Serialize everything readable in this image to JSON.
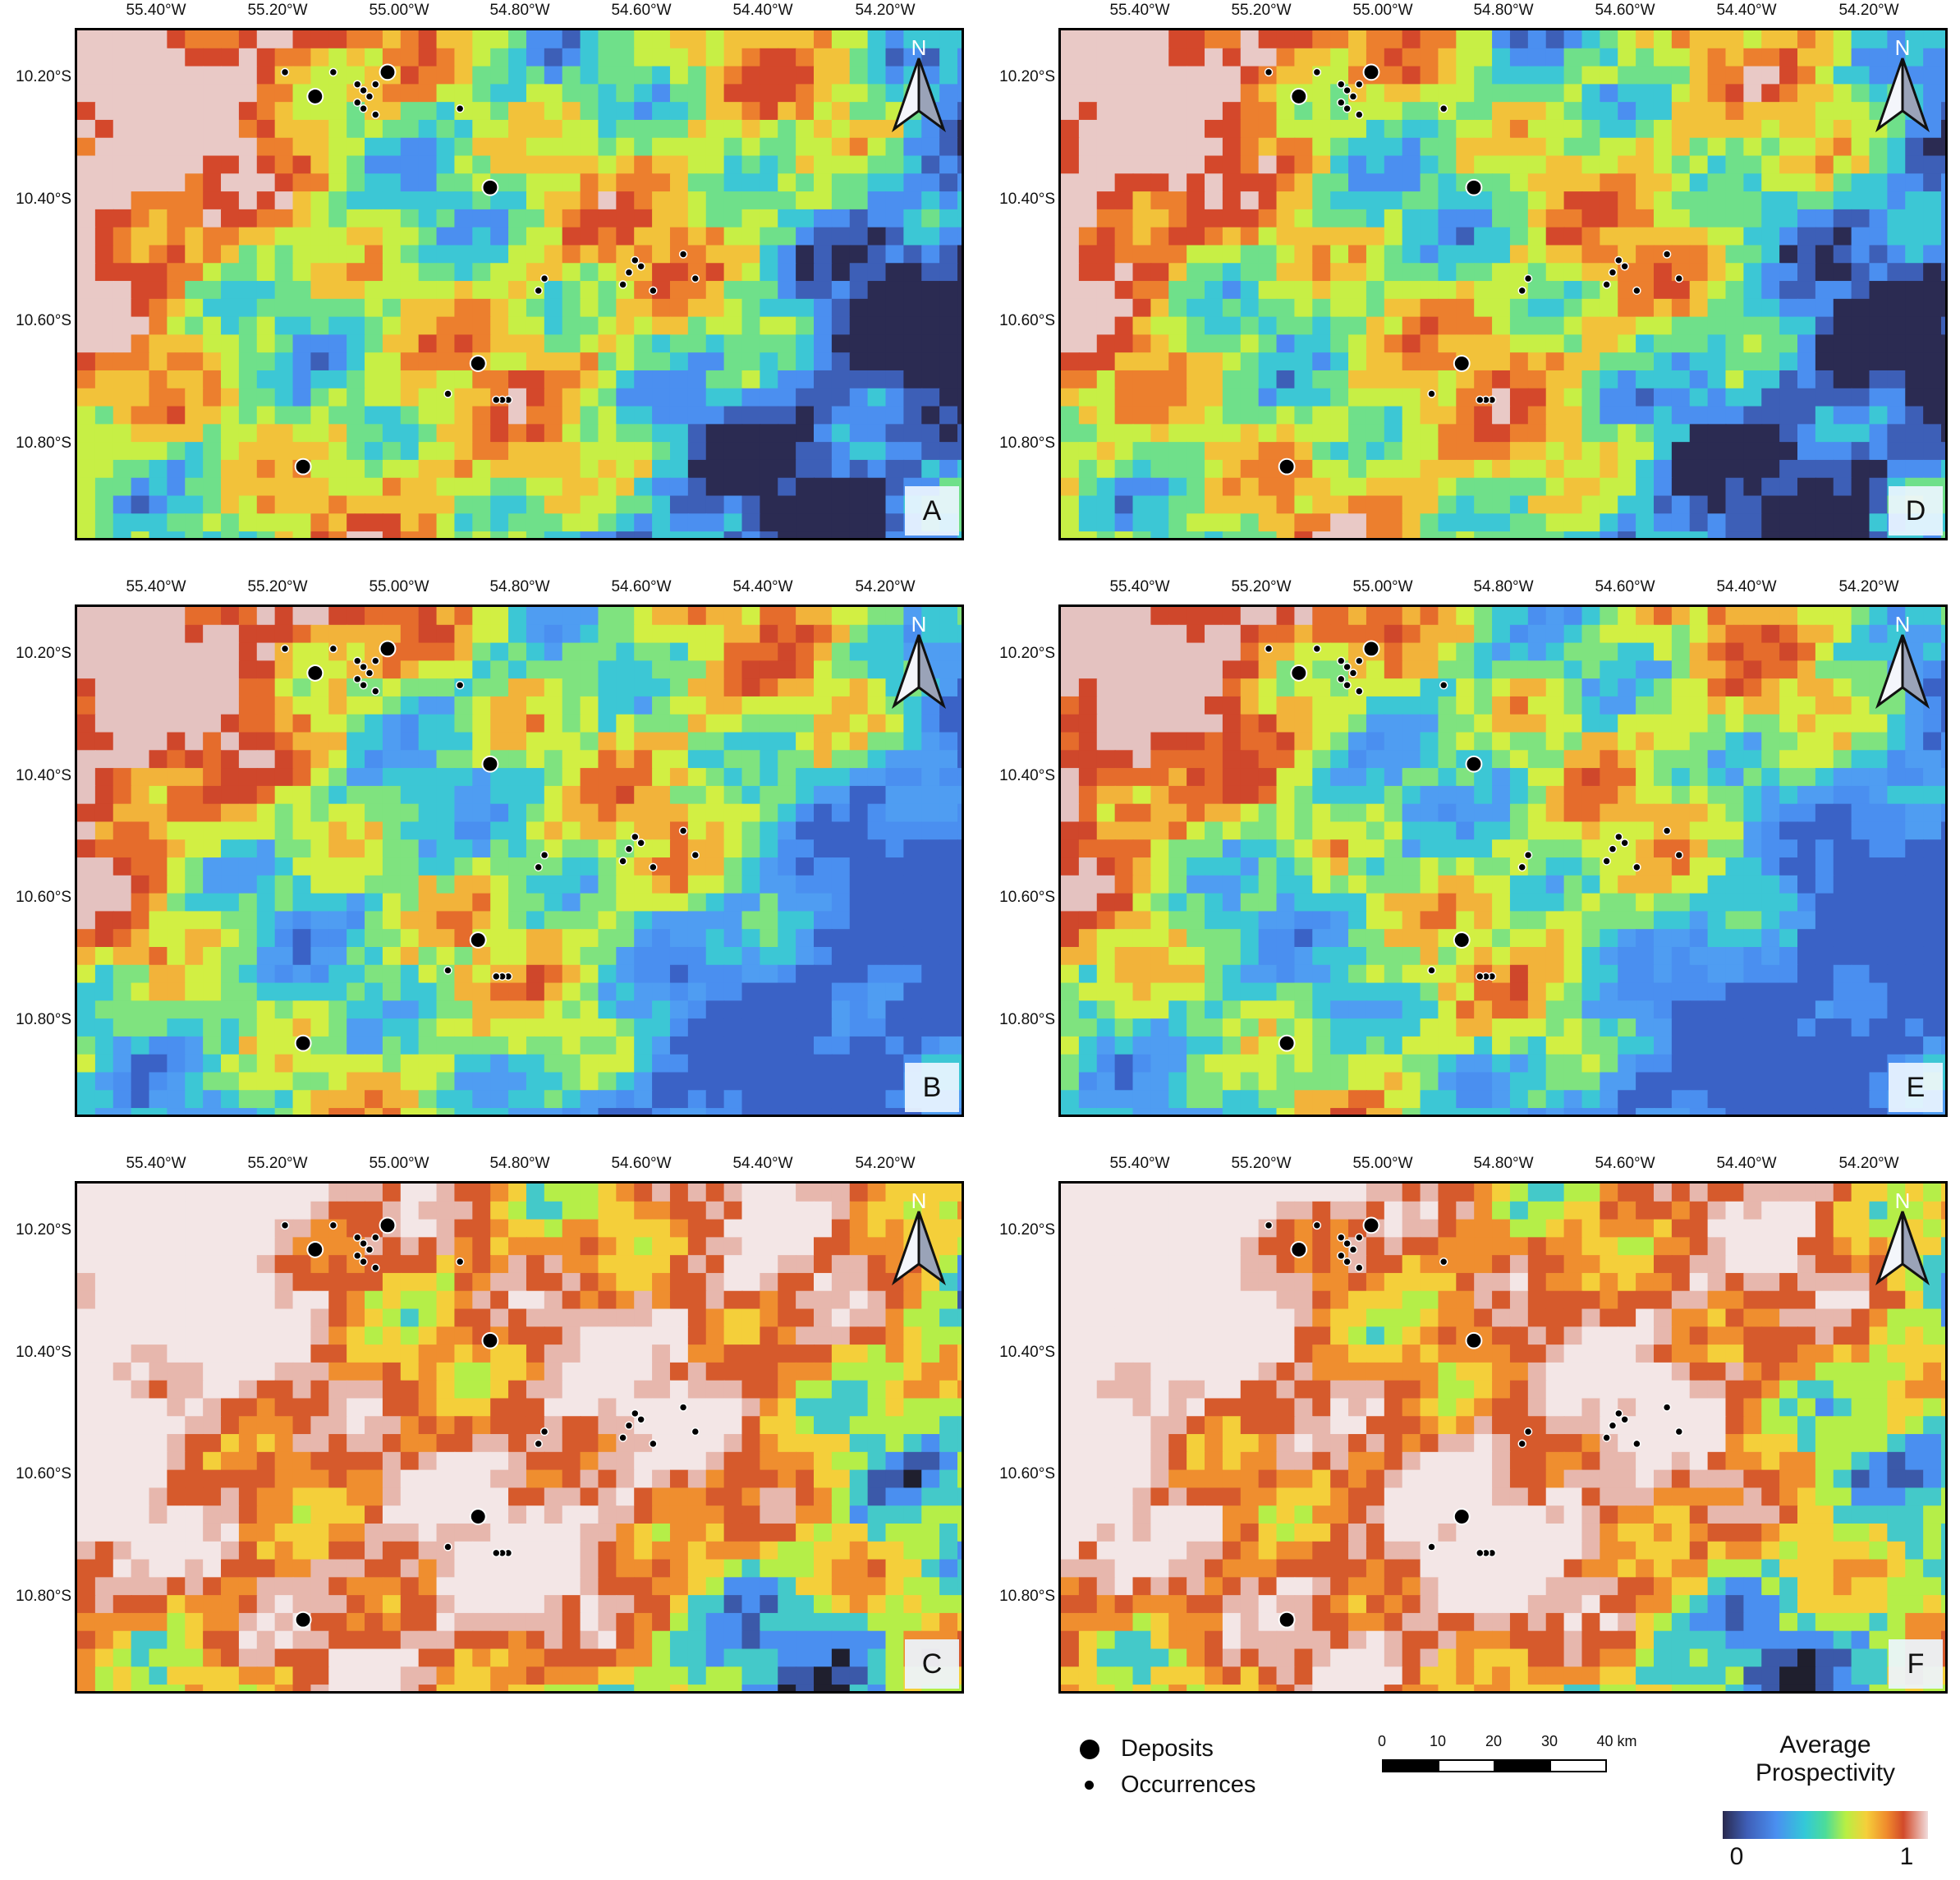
{
  "colors": {
    "frame": "#000000",
    "dark_low": "#2a2a4e",
    "blue": "#4a8ff0",
    "cyan": "#33c9d8",
    "green": "#b8ef43",
    "yellow": "#f5cf3a",
    "orange": "#f08a2c",
    "red": "#d24a2a",
    "high_white": "#f1dcdc"
  },
  "axes": {
    "longitudes": [
      "55.40°W",
      "55.20°W",
      "55.00°W",
      "54.80°W",
      "54.60°W",
      "54.40°W",
      "54.20°W"
    ],
    "latitudes": [
      "10.20°S",
      "10.40°S",
      "10.60°S",
      "10.80°S"
    ]
  },
  "north_arrow_label": "N",
  "panels": [
    {
      "letter": "A",
      "style": "balanced"
    },
    {
      "letter": "B",
      "style": "north-heavy"
    },
    {
      "letter": "C",
      "style": "broad-high"
    },
    {
      "letter": "D",
      "style": "balanced"
    },
    {
      "letter": "E",
      "style": "north-heavy"
    },
    {
      "letter": "F",
      "style": "broad-high"
    }
  ],
  "points": {
    "deposits": [
      [
        55.13,
        10.22
      ],
      [
        55.01,
        10.18
      ],
      [
        54.84,
        10.37
      ],
      [
        54.86,
        10.66
      ],
      [
        55.15,
        10.83
      ]
    ],
    "occurrences": [
      [
        55.18,
        10.18
      ],
      [
        55.1,
        10.18
      ],
      [
        55.06,
        10.2
      ],
      [
        55.05,
        10.21
      ],
      [
        55.04,
        10.22
      ],
      [
        55.03,
        10.2
      ],
      [
        55.05,
        10.24
      ],
      [
        55.03,
        10.25
      ],
      [
        55.06,
        10.23
      ],
      [
        54.89,
        10.24
      ],
      [
        54.75,
        10.52
      ],
      [
        54.76,
        10.54
      ],
      [
        54.62,
        10.53
      ],
      [
        54.61,
        10.51
      ],
      [
        54.6,
        10.49
      ],
      [
        54.59,
        10.5
      ],
      [
        54.57,
        10.54
      ],
      [
        54.52,
        10.48
      ],
      [
        54.5,
        10.52
      ],
      [
        54.91,
        10.71
      ],
      [
        54.81,
        10.72
      ],
      [
        54.82,
        10.72
      ],
      [
        54.83,
        10.72
      ]
    ]
  },
  "legend": {
    "deposits_label": "Deposits",
    "occurrences_label": "Occurrences"
  },
  "scalebar": {
    "ticks": [
      "0",
      "10",
      "20",
      "30",
      "40 km"
    ]
  },
  "colorbar": {
    "title_line1": "Average",
    "title_line2": "Prospectivity",
    "min_label": "0",
    "max_label": "1"
  }
}
